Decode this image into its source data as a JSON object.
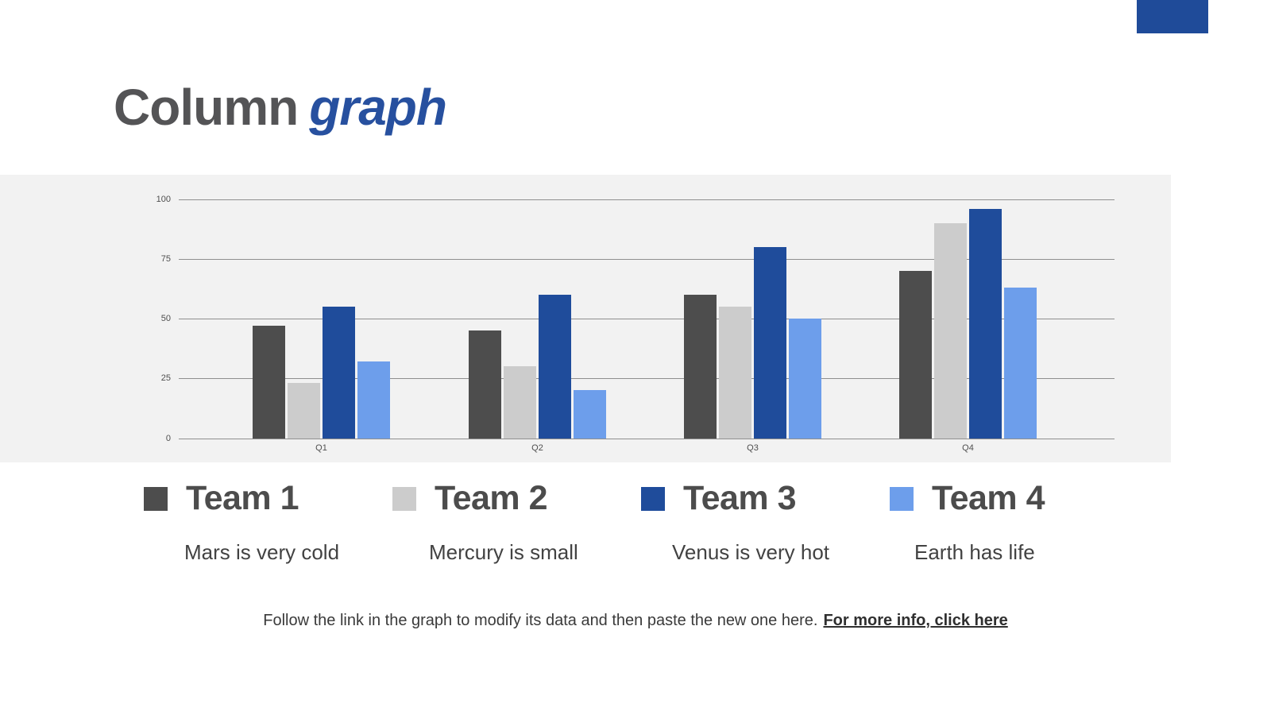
{
  "title": {
    "part1": "Column",
    "part2": "graph"
  },
  "accent_color": "#1f4b99",
  "chart_data": {
    "type": "bar",
    "title": "",
    "categories": [
      "Q1",
      "Q2",
      "Q3",
      "Q4"
    ],
    "series": [
      {
        "name": "Team 1",
        "color": "#4d4d4d",
        "values": [
          47,
          45,
          60,
          70
        ]
      },
      {
        "name": "Team 2",
        "color": "#cccccc",
        "values": [
          23,
          30,
          55,
          90
        ]
      },
      {
        "name": "Team 3",
        "color": "#1f4c9b",
        "values": [
          55,
          60,
          80,
          96
        ]
      },
      {
        "name": "Team 4",
        "color": "#6d9eeb",
        "values": [
          32,
          20,
          50,
          63
        ]
      }
    ],
    "xlabel": "",
    "ylabel": "",
    "ylim": [
      0,
      100
    ],
    "yticks": [
      0,
      25,
      50,
      75,
      100
    ],
    "grid": true,
    "plot_background": "#f2f2f2",
    "legend_position": "below-chart"
  },
  "legend": {
    "items": [
      {
        "label": "Team 1",
        "description": "Mars is very cold",
        "color": "#4d4d4d"
      },
      {
        "label": "Team 2",
        "description": "Mercury is small",
        "color": "#cccccc"
      },
      {
        "label": "Team 3",
        "description": "Venus is very hot",
        "color": "#1f4c9b"
      },
      {
        "label": "Team 4",
        "description": "Earth has life",
        "color": "#6d9eeb"
      }
    ]
  },
  "footer": {
    "text": "Follow the link in the graph to modify its data and then paste the new one here.",
    "link_text": "For more info, click here"
  }
}
